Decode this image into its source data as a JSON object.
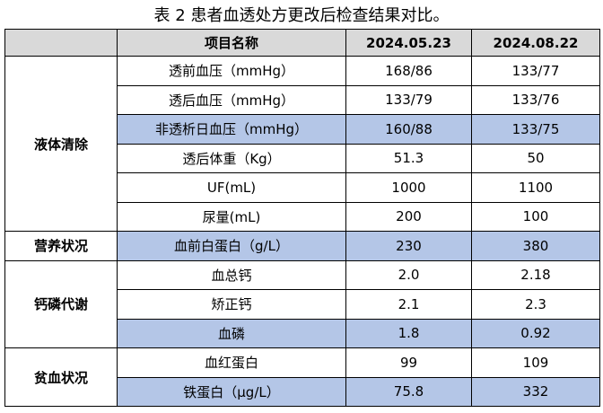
{
  "title": "表 2  患者血透处方更改后检查结果对比。",
  "table": {
    "header": [
      "",
      "项目名称",
      "2024.05.23",
      "2024.08.22"
    ],
    "groups": [
      {
        "label": "液体清除",
        "rows": [
          {
            "cells": [
              "透前血压（mmHg）",
              "168/86",
              "133/77"
            ],
            "highlight": false
          },
          {
            "cells": [
              "透后血压（mmHg）",
              "133/79",
              "133/76"
            ],
            "highlight": false
          },
          {
            "cells": [
              "非透析日血压（mmHg）",
              "160/88",
              "133/75"
            ],
            "highlight": true
          },
          {
            "cells": [
              "透后体重（Kg）",
              "51.3",
              "50"
            ],
            "highlight": false
          },
          {
            "cells": [
              "UF(mL)",
              "1000",
              "1100"
            ],
            "highlight": false
          },
          {
            "cells": [
              "尿量(mL)",
              "200",
              "100"
            ],
            "highlight": false
          }
        ]
      },
      {
        "label": "营养状况",
        "rows": [
          {
            "cells": [
              "血前白蛋白（g/L）",
              "230",
              "380"
            ],
            "highlight": true
          }
        ]
      },
      {
        "label": "钙磷代谢",
        "rows": [
          {
            "cells": [
              "血总钙",
              "2.0",
              "2.18"
            ],
            "highlight": false
          },
          {
            "cells": [
              "矫正钙",
              "2.1",
              "2.3"
            ],
            "highlight": false
          },
          {
            "cells": [
              "血磷",
              "1.8",
              "0.92"
            ],
            "highlight": true
          }
        ]
      },
      {
        "label": "贫血状况",
        "rows": [
          {
            "cells": [
              "血红蛋白",
              "99",
              "109"
            ],
            "highlight": false
          },
          {
            "cells": [
              "铁蛋白（μg/L）",
              "75.8",
              "332"
            ],
            "highlight": true
          }
        ]
      }
    ]
  }
}
